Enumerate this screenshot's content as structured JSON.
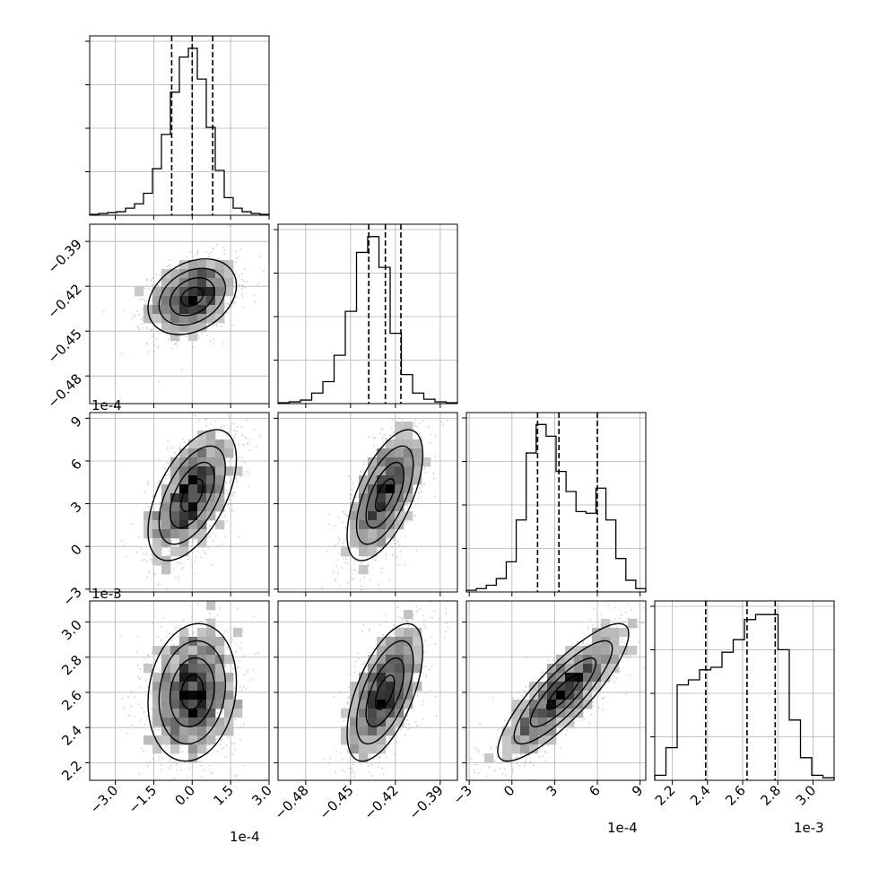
{
  "chart_data": {
    "type": "corner",
    "colors": {
      "ink": "#000000",
      "grid": "#b0b0b0",
      "scatter": "#9a9a9a"
    },
    "offset_labels": {
      "p1": "1e-4",
      "p2": "",
      "p3": "1e-4",
      "p4": "1e-3"
    },
    "params": [
      {
        "id": "p1",
        "range": [
          -4.0,
          3.0
        ],
        "ticks": [
          -3.0,
          -1.5,
          0.0,
          1.5,
          3.0
        ],
        "tick_labels": [
          "−3.0",
          "−1.5",
          "0.0",
          "1.5",
          "3.0"
        ],
        "quantiles": [
          -0.8,
          0.0,
          0.8
        ],
        "mean": 0.0,
        "sd": 0.75
      },
      {
        "id": "p2",
        "range": [
          -0.4985,
          -0.3785
        ],
        "ticks": [
          -0.48,
          -0.45,
          -0.42,
          -0.39
        ],
        "tick_labels": [
          "−0.48",
          "−0.45",
          "−0.42",
          "−0.39"
        ],
        "quantiles": [
          -0.4378,
          -0.4267,
          -0.4163
        ],
        "mean": -0.427,
        "sd": 0.011
      },
      {
        "id": "p3",
        "range": [
          -3.2,
          9.4
        ],
        "ticks": [
          -3,
          0,
          3,
          6,
          9
        ],
        "tick_labels": [
          "−3",
          "0",
          "3",
          "6",
          "9"
        ],
        "quantiles": [
          1.8,
          3.3,
          6.0
        ],
        "mean": 3.6,
        "sd": 2.0
      },
      {
        "id": "p4",
        "range": [
          2.1,
          3.12
        ],
        "ticks": [
          2.2,
          2.4,
          2.6,
          2.8,
          3.0
        ],
        "tick_labels": [
          "2.2",
          "2.4",
          "2.6",
          "2.8",
          "3.0"
        ],
        "quantiles": [
          2.39,
          2.625,
          2.785
        ],
        "mean": 2.6,
        "sd": 0.17
      }
    ],
    "histograms": [
      {
        "param": "p1",
        "bin_edges": [
          -4.0,
          3.0
        ],
        "counts": [
          1,
          2,
          3,
          4,
          8,
          13,
          25,
          53,
          92,
          140,
          180,
          190,
          155,
          100,
          51,
          20,
          8,
          4,
          2,
          1
        ],
        "ymax": 200
      },
      {
        "param": "p2",
        "bin_edges": [
          -0.4985,
          -0.3785
        ],
        "counts": [
          1,
          2,
          4,
          12,
          25,
          55,
          105,
          172,
          190,
          155,
          80,
          33,
          12,
          5,
          2,
          1
        ],
        "ymax": 200
      },
      {
        "param": "p3",
        "bin_edges": [
          -3.2,
          9.4
        ],
        "counts": [
          1,
          2,
          4,
          8,
          18,
          43,
          83,
          100,
          93,
          72,
          60,
          48,
          47,
          62,
          43,
          20,
          7,
          2
        ],
        "ymax": 105
      },
      {
        "param": "p4",
        "bin_edges": [
          2.1,
          3.12
        ],
        "counts": [
          2,
          13,
          38,
          40,
          44,
          45,
          51,
          56,
          64,
          66,
          66,
          52,
          24,
          9,
          2,
          1
        ],
        "ymax": 70
      }
    ],
    "correlations": {
      "p1_p2": 0.3,
      "p1_p3": 0.55,
      "p1_p4": 0.15,
      "p2_p3": 0.62,
      "p2_p4": 0.6,
      "p3_p4": 0.85
    },
    "legend": null,
    "grid": true
  }
}
